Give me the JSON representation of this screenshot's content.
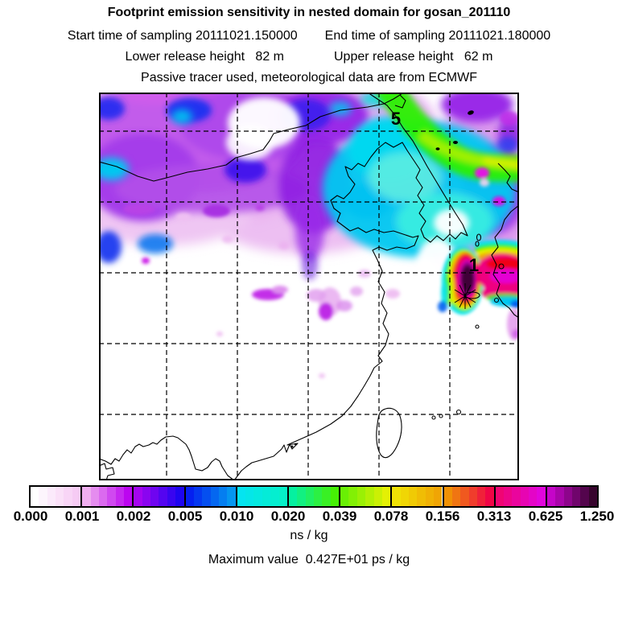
{
  "header": {
    "title": "Footprint emission sensitivity in nested domain for gosan_201110",
    "start_line": "Start time of sampling 20111021.150000",
    "end_line": "End time of sampling 20111021.180000",
    "lower_release": "Lower release height   82 m",
    "upper_release": "Upper release height   62 m",
    "tracer_line": "Passive tracer used, meteorological data are from ECMWF"
  },
  "map": {
    "labels": [
      {
        "text": "5"
      },
      {
        "text": "1"
      }
    ],
    "receptor_marker": "star-with-jeju-island-ellipse"
  },
  "colorbar": {
    "units": "ns / kg",
    "ticks": [
      "0.000",
      "0.001",
      "0.002",
      "0.005",
      "0.010",
      "0.020",
      "0.039",
      "0.078",
      "0.156",
      "0.313",
      "0.625",
      "1.250"
    ],
    "substeps": 6,
    "segments": [
      [
        "#FFFFFF",
        "#F6CBF4"
      ],
      [
        "#EFAEEF",
        "#BC05F0"
      ],
      [
        "#A505F0",
        "#1E05F0"
      ],
      [
        "#0520F0",
        "#0596F0"
      ],
      [
        "#05E4F0",
        "#05F0C8"
      ],
      [
        "#05F0A0",
        "#46F005"
      ],
      [
        "#69F005",
        "#E4F005"
      ],
      [
        "#F0E205",
        "#F0A505"
      ],
      [
        "#F09105",
        "#F00546"
      ],
      [
        "#F00573",
        "#E105DC"
      ],
      [
        "#C505C9",
        "#38052E"
      ]
    ]
  },
  "footer": {
    "max_line": "Maximum value  0.427E+01 ps / kg"
  },
  "chart_data": {
    "type": "heatmap",
    "title": "Footprint emission sensitivity in nested domain for gosan_201110",
    "station": "gosan_201110",
    "sampling_start": "20111021.150000",
    "sampling_end": "20111021.180000",
    "lower_release_height_m": 82,
    "upper_release_height_m": 62,
    "tracer": "Passive tracer used, meteorological data are from ECMWF",
    "colorbar_levels": [
      0.0,
      0.001,
      0.002,
      0.005,
      0.01,
      0.02,
      0.039,
      0.078,
      0.156,
      0.313,
      0.625,
      1.25
    ],
    "colorbar_units": "ns / kg",
    "maximum_value": "0.427E+01 ps / kg",
    "map_annotations": [
      "5",
      "1"
    ],
    "grid": "5x5 dashed unlabeled lat/lon grid over East Asia (China, Korea, Japan, Taiwan)",
    "legend_position": "horizontal colorbar below map",
    "pattern_notes": "High-sensitivity plume band (purple/blue/cyan) across northern third of domain; diagonal green-yellow filament from top center to right edge; maximum (dark purple core ringed by magenta-red-orange-yellow-green-cyan) at Gosan/Jeju receptor marked by star and label 1, extending east to right edge; lower half of domain near zero (white) with scattered faint pink patches; label 5 in cyan field near top."
  }
}
